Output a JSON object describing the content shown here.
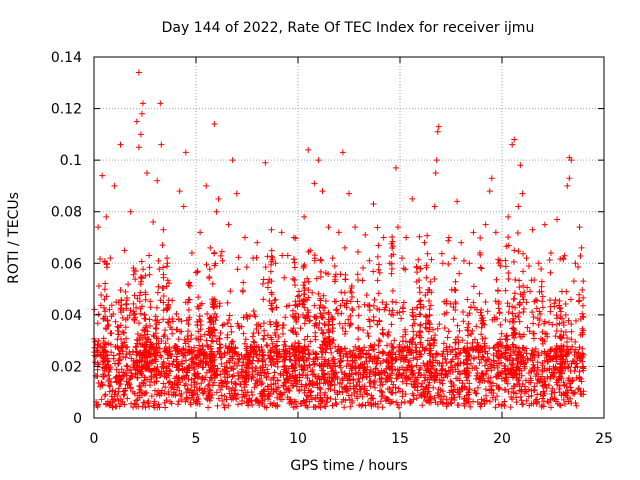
{
  "chart_data": {
    "type": "scatter",
    "title": "Day 144 of 2022, Rate Of TEC Index for receiver ijmu",
    "xlabel": "GPS time / hours",
    "ylabel": "ROTI / TECUs",
    "xlim": [
      0,
      25
    ],
    "ylim": [
      0,
      0.14
    ],
    "x_ticks": [
      0,
      5,
      10,
      15,
      20,
      25
    ],
    "y_ticks": [
      0,
      0.02,
      0.04,
      0.06,
      0.08,
      0.1,
      0.12,
      0.14
    ],
    "x_tick_labels": [
      "0",
      "5",
      "10",
      "15",
      "20",
      "25"
    ],
    "y_tick_labels": [
      "0",
      "0.02",
      "0.04",
      "0.06",
      "0.08",
      "0.1",
      "0.12",
      "0.14"
    ],
    "grid": true,
    "marker": "+",
    "color": "#ff0000",
    "data_range_hours": [
      0,
      24
    ],
    "series": [
      {
        "name": "ROTI",
        "points": [
          [
            2.2,
            0.134
          ],
          [
            2.4,
            0.122
          ],
          [
            2.35,
            0.118
          ],
          [
            2.1,
            0.115
          ],
          [
            3.25,
            0.122
          ],
          [
            2.3,
            0.11
          ],
          [
            2.2,
            0.105
          ],
          [
            1.3,
            0.106
          ],
          [
            5.9,
            0.114
          ],
          [
            3.3,
            0.106
          ],
          [
            16.9,
            0.113
          ],
          [
            16.85,
            0.111
          ],
          [
            20.6,
            0.108
          ],
          [
            20.5,
            0.106
          ],
          [
            10.5,
            0.104
          ],
          [
            12.2,
            0.103
          ],
          [
            4.5,
            0.103
          ],
          [
            6.8,
            0.1
          ],
          [
            8.4,
            0.099
          ],
          [
            11.0,
            0.1
          ],
          [
            23.3,
            0.101
          ],
          [
            23.4,
            0.1
          ],
          [
            20.9,
            0.098
          ],
          [
            19.5,
            0.093
          ],
          [
            14.8,
            0.097
          ],
          [
            16.8,
            0.1
          ],
          [
            16.75,
            0.095
          ],
          [
            0.4,
            0.094
          ],
          [
            1.0,
            0.09
          ],
          [
            2.6,
            0.095
          ],
          [
            3.1,
            0.092
          ],
          [
            4.2,
            0.088
          ],
          [
            5.5,
            0.09
          ],
          [
            6.1,
            0.085
          ],
          [
            7.0,
            0.087
          ],
          [
            10.8,
            0.091
          ],
          [
            11.2,
            0.088
          ],
          [
            12.5,
            0.087
          ],
          [
            13.7,
            0.083
          ],
          [
            15.6,
            0.085
          ],
          [
            17.8,
            0.084
          ],
          [
            19.4,
            0.088
          ],
          [
            21.0,
            0.087
          ],
          [
            23.3,
            0.093
          ],
          [
            23.2,
            0.09
          ],
          [
            0.2,
            0.074
          ],
          [
            0.6,
            0.078
          ],
          [
            1.8,
            0.08
          ],
          [
            2.9,
            0.076
          ],
          [
            3.4,
            0.073
          ],
          [
            4.4,
            0.082
          ],
          [
            5.2,
            0.072
          ],
          [
            6.0,
            0.08
          ],
          [
            6.6,
            0.075
          ],
          [
            7.4,
            0.07
          ],
          [
            8.0,
            0.068
          ],
          [
            8.7,
            0.073
          ],
          [
            9.2,
            0.072
          ],
          [
            9.8,
            0.07
          ],
          [
            10.3,
            0.078
          ],
          [
            11.5,
            0.074
          ],
          [
            12.0,
            0.072
          ],
          [
            12.8,
            0.074
          ],
          [
            13.3,
            0.071
          ],
          [
            14.2,
            0.07
          ],
          [
            14.9,
            0.074
          ],
          [
            15.3,
            0.07
          ],
          [
            16.2,
            0.068
          ],
          [
            16.7,
            0.082
          ],
          [
            17.4,
            0.07
          ],
          [
            18.0,
            0.068
          ],
          [
            18.6,
            0.072
          ],
          [
            19.2,
            0.075
          ],
          [
            19.7,
            0.072
          ],
          [
            20.3,
            0.078
          ],
          [
            20.8,
            0.082
          ],
          [
            21.5,
            0.073
          ],
          [
            22.1,
            0.075
          ],
          [
            22.7,
            0.077
          ],
          [
            23.8,
            0.074
          ],
          [
            23.9,
            0.066
          ],
          [
            0.8,
            0.062
          ],
          [
            1.5,
            0.065
          ],
          [
            2.7,
            0.063
          ],
          [
            3.6,
            0.06
          ],
          [
            4.8,
            0.064
          ],
          [
            5.7,
            0.066
          ],
          [
            6.3,
            0.061
          ],
          [
            7.8,
            0.062
          ],
          [
            8.9,
            0.06
          ],
          [
            9.5,
            0.063
          ],
          [
            10.6,
            0.065
          ],
          [
            11.7,
            0.062
          ],
          [
            12.3,
            0.066
          ],
          [
            13.5,
            0.061
          ],
          [
            14.5,
            0.06
          ],
          [
            15.1,
            0.062
          ],
          [
            16.0,
            0.058
          ],
          [
            17.1,
            0.06
          ],
          [
            17.9,
            0.056
          ],
          [
            18.4,
            0.06
          ],
          [
            19.0,
            0.058
          ],
          [
            19.9,
            0.061
          ],
          [
            20.6,
            0.065
          ],
          [
            21.2,
            0.062
          ],
          [
            21.8,
            0.06
          ],
          [
            22.4,
            0.064
          ],
          [
            23.0,
            0.062
          ],
          [
            23.6,
            0.06
          ]
        ]
      }
    ]
  }
}
